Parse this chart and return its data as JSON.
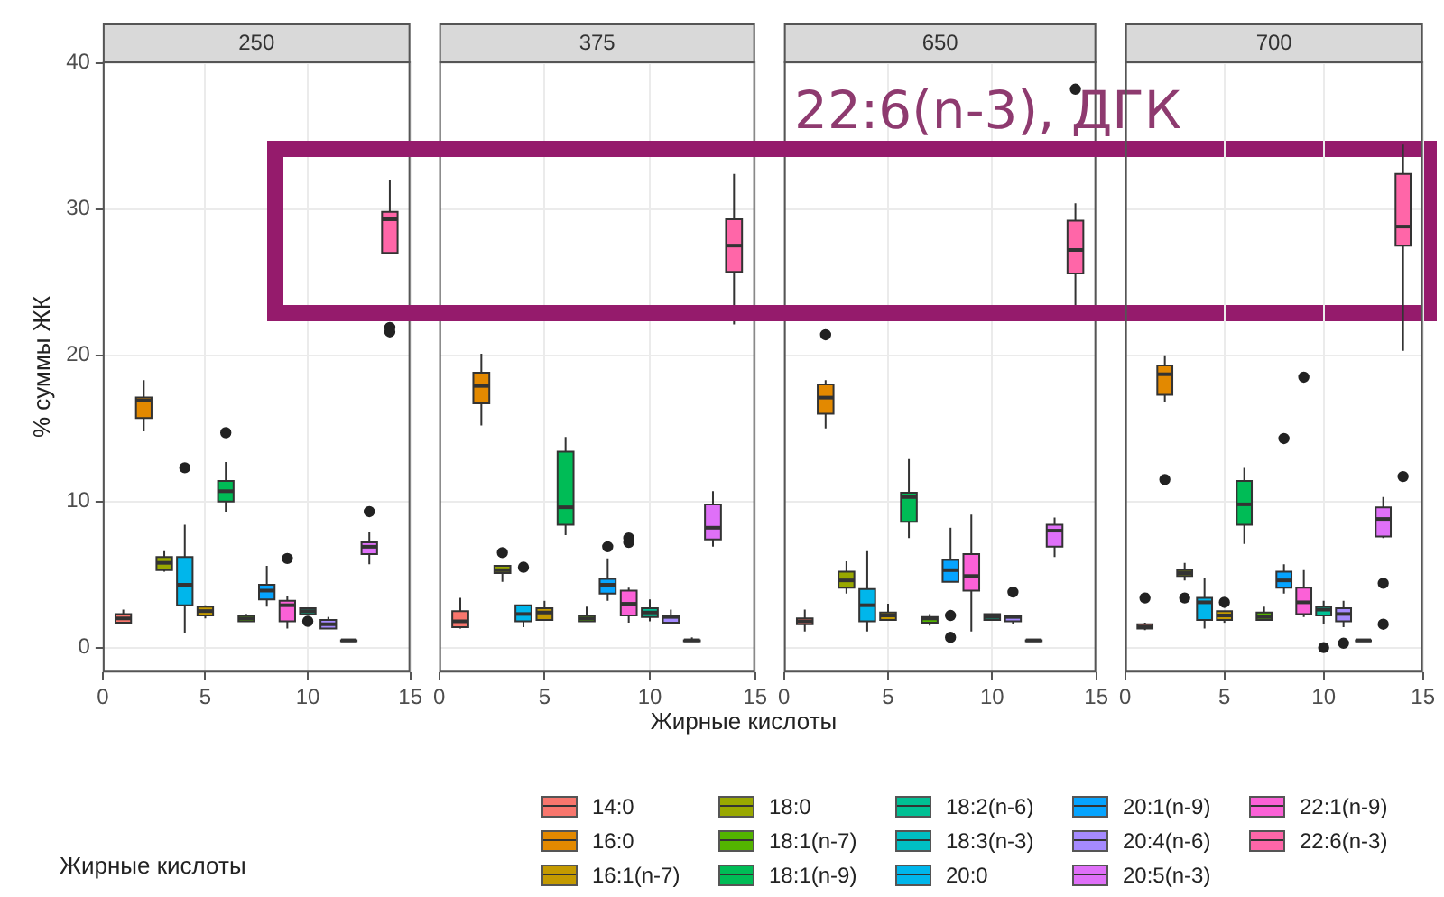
{
  "chart_data": [
    {
      "type": "box",
      "title": "250",
      "ylabel": "% суммы ЖК",
      "legend_title": "Жирные кислоты",
      "legend": "bottom",
      "grid": true,
      "xlim": [
        0,
        15
      ],
      "xticks": [
        0,
        5,
        10,
        15
      ],
      "ylim": [
        -1.7,
        40.1
      ],
      "yticks": [
        0,
        10,
        20,
        30,
        40
      ],
      "series": [
        {
          "name": "14:0",
          "color": "#f8766d",
          "x": [
            1
          ],
          "boxes": [
            {
              "low": 1.6,
              "q1": 1.7,
              "median": 2.0,
              "q3": 2.3,
              "high": 2.6
            }
          ]
        },
        {
          "name": "16:0",
          "color": "#e38900",
          "x": [
            2
          ],
          "boxes": [
            {
              "low": 14.8,
              "q1": 15.7,
              "median": 16.9,
              "q3": 17.1,
              "high": 18.3
            }
          ]
        },
        {
          "name": "16:1(n-7)",
          "color": "#c49a00",
          "x": [
            5
          ],
          "boxes": [
            {
              "low": 2.0,
              "q1": 2.2,
              "median": 2.5,
              "q3": 2.8,
              "high": 2.9
            }
          ]
        },
        {
          "name": "18:0",
          "color": "#99a800",
          "x": [
            3
          ],
          "boxes": [
            {
              "low": 5.2,
              "q1": 5.3,
              "median": 5.8,
              "q3": 6.2,
              "high": 6.6
            }
          ]
        },
        {
          "name": "18:1(n-7)",
          "color": "#53b400",
          "x": [
            7
          ],
          "boxes": [
            {
              "low": 1.8,
              "q1": 1.8,
              "median": 2.0,
              "q3": 2.2,
              "high": 2.3
            }
          ]
        },
        {
          "name": "18:1(n-9)",
          "color": "#00bc56",
          "x": [
            6
          ],
          "boxes": [
            {
              "low": 9.3,
              "q1": 10.0,
              "median": 10.7,
              "q3": 11.4,
              "high": 12.7,
              "outliers": [
                14.7
              ]
            }
          ]
        },
        {
          "name": "18:2(n-6)",
          "color": "#00c094",
          "x": [
            10
          ],
          "boxes": [
            {
              "low": 2.3,
              "q1": 2.3,
              "median": 2.5,
              "q3": 2.7,
              "high": 2.7,
              "outliers": [
                1.8
              ]
            }
          ]
        },
        {
          "name": "18:3(n-3)",
          "color": "#00bfc4",
          "x": [
            12
          ],
          "boxes": [
            {
              "low": 0.5,
              "q1": 0.5,
              "median": 0.5,
              "q3": 0.5,
              "high": 0.5
            }
          ]
        },
        {
          "name": "20:0",
          "color": "#00b6eb",
          "x": [
            4
          ],
          "boxes": [
            {
              "low": 1.0,
              "q1": 2.9,
              "median": 4.3,
              "q3": 6.2,
              "high": 8.4,
              "outliers": [
                12.3
              ]
            }
          ]
        },
        {
          "name": "20:1(n-9)",
          "color": "#06a4ff",
          "x": [
            8
          ],
          "boxes": [
            {
              "low": 2.8,
              "q1": 3.3,
              "median": 3.9,
              "q3": 4.3,
              "high": 5.6
            }
          ]
        },
        {
          "name": "20:4(n-6)",
          "color": "#a58aff",
          "x": [
            11
          ],
          "boxes": [
            {
              "low": 1.3,
              "q1": 1.3,
              "median": 1.6,
              "q3": 1.9,
              "high": 2.1
            }
          ]
        },
        {
          "name": "20:5(n-3)",
          "color": "#df70f8",
          "x": [
            13
          ],
          "boxes": [
            {
              "low": 5.7,
              "q1": 6.4,
              "median": 6.9,
              "q3": 7.2,
              "high": 7.9,
              "outliers": [
                9.3
              ]
            }
          ]
        },
        {
          "name": "22:1(n-9)",
          "color": "#fb61d7",
          "x": [
            9
          ],
          "boxes": [
            {
              "low": 1.3,
              "q1": 1.8,
              "median": 2.9,
              "q3": 3.2,
              "high": 3.5,
              "outliers": [
                6.1
              ]
            }
          ]
        },
        {
          "name": "22:6(n-3)",
          "color": "#ff66a8",
          "x": [
            14
          ],
          "boxes": [
            {
              "low": 27.0,
              "q1": 27.0,
              "median": 29.3,
              "q3": 29.8,
              "high": 32.0,
              "outliers": [
                21.9,
                21.6
              ]
            }
          ]
        }
      ]
    },
    {
      "type": "box",
      "title": "375",
      "xlabel": "Жирные кислоты",
      "tick_labels": "x",
      "grid": true,
      "xlim": [
        0,
        15
      ],
      "xticks": [
        0,
        5,
        10,
        15
      ],
      "ylim": [
        -1.7,
        40.1
      ],
      "yticks": [
        0,
        10,
        20,
        30,
        40
      ],
      "series": [
        {
          "color": "#f8766d",
          "x": [
            1
          ],
          "boxes": [
            {
              "low": 1.3,
              "q1": 1.4,
              "median": 1.8,
              "q3": 2.5,
              "high": 3.4
            }
          ]
        },
        {
          "color": "#e38900",
          "x": [
            2
          ],
          "boxes": [
            {
              "low": 15.2,
              "q1": 16.7,
              "median": 17.9,
              "q3": 18.8,
              "high": 20.1
            }
          ]
        },
        {
          "color": "#c49a00",
          "x": [
            5
          ],
          "boxes": [
            {
              "low": 1.9,
              "q1": 1.9,
              "median": 2.4,
              "q3": 2.7,
              "high": 3.2
            }
          ]
        },
        {
          "color": "#99a800",
          "x": [
            3
          ],
          "boxes": [
            {
              "low": 4.5,
              "q1": 5.1,
              "median": 5.3,
              "q3": 5.6,
              "high": 5.6,
              "outliers": [
                6.5
              ]
            }
          ]
        },
        {
          "color": "#53b400",
          "x": [
            7
          ],
          "boxes": [
            {
              "low": 1.8,
              "q1": 1.8,
              "median": 2.0,
              "q3": 2.2,
              "high": 2.8
            }
          ]
        },
        {
          "color": "#00bc56",
          "x": [
            6
          ],
          "boxes": [
            {
              "low": 7.7,
              "q1": 8.4,
              "median": 9.6,
              "q3": 13.4,
              "high": 14.4
            }
          ]
        },
        {
          "color": "#00c094",
          "x": [
            10
          ],
          "boxes": [
            {
              "low": 1.8,
              "q1": 2.1,
              "median": 2.4,
              "q3": 2.7,
              "high": 3.3
            }
          ]
        },
        {
          "color": "#00bfc4",
          "x": [
            12
          ],
          "boxes": [
            {
              "low": 0.5,
              "q1": 0.5,
              "median": 0.5,
              "q3": 0.5,
              "high": 0.7
            }
          ]
        },
        {
          "color": "#00b6eb",
          "x": [
            4
          ],
          "boxes": [
            {
              "low": 1.4,
              "q1": 1.8,
              "median": 2.3,
              "q3": 2.9,
              "high": 2.9,
              "outliers": [
                5.5
              ]
            }
          ]
        },
        {
          "color": "#06a4ff",
          "x": [
            8
          ],
          "boxes": [
            {
              "low": 3.2,
              "q1": 3.7,
              "median": 4.3,
              "q3": 4.7,
              "high": 6.1,
              "outliers": [
                6.9
              ]
            }
          ]
        },
        {
          "color": "#a58aff",
          "x": [
            11
          ],
          "boxes": [
            {
              "low": 1.7,
              "q1": 1.7,
              "median": 2.1,
              "q3": 2.2,
              "high": 2.6
            }
          ]
        },
        {
          "color": "#df70f8",
          "x": [
            13
          ],
          "boxes": [
            {
              "low": 6.9,
              "q1": 7.4,
              "median": 8.2,
              "q3": 9.8,
              "high": 10.7
            }
          ]
        },
        {
          "color": "#fb61d7",
          "x": [
            9
          ],
          "boxes": [
            {
              "low": 1.7,
              "q1": 2.2,
              "median": 3.0,
              "q3": 3.9,
              "high": 4.1,
              "outliers": [
                7.5,
                7.2
              ]
            }
          ]
        },
        {
          "color": "#ff66a8",
          "x": [
            14
          ],
          "boxes": [
            {
              "low": 22.1,
              "q1": 25.7,
              "median": 27.5,
              "q3": 29.3,
              "high": 32.4
            }
          ]
        }
      ]
    },
    {
      "type": "box",
      "title": "650",
      "annotations": [
        "22:6(n-3), ДГК"
      ],
      "tick_labels": "x",
      "grid": true,
      "xlim": [
        0,
        15
      ],
      "xticks": [
        0,
        5,
        10,
        15
      ],
      "ylim": [
        -1.7,
        40.1
      ],
      "yticks": [
        0,
        10,
        20,
        30,
        40
      ],
      "series": [
        {
          "color": "#f8766d",
          "x": [
            1
          ],
          "boxes": [
            {
              "low": 1.1,
              "q1": 1.6,
              "median": 1.8,
              "q3": 2.0,
              "high": 2.6
            }
          ]
        },
        {
          "color": "#e38900",
          "x": [
            2
          ],
          "boxes": [
            {
              "low": 15.0,
              "q1": 16.0,
              "median": 17.1,
              "q3": 18.0,
              "high": 18.3,
              "outliers": [
                21.4
              ]
            }
          ]
        },
        {
          "color": "#c49a00",
          "x": [
            5
          ],
          "boxes": [
            {
              "low": 1.9,
              "q1": 1.9,
              "median": 2.2,
              "q3": 2.4,
              "high": 3.0
            }
          ]
        },
        {
          "color": "#99a800",
          "x": [
            3
          ],
          "boxes": [
            {
              "low": 3.7,
              "q1": 4.1,
              "median": 4.6,
              "q3": 5.2,
              "high": 5.9
            }
          ]
        },
        {
          "color": "#53b400",
          "x": [
            7
          ],
          "boxes": [
            {
              "low": 1.5,
              "q1": 1.7,
              "median": 2.0,
              "q3": 2.1,
              "high": 2.3
            }
          ]
        },
        {
          "color": "#00bc56",
          "x": [
            6
          ],
          "boxes": [
            {
              "low": 7.5,
              "q1": 8.6,
              "median": 10.3,
              "q3": 10.6,
              "high": 12.9
            }
          ]
        },
        {
          "color": "#00c094",
          "x": [
            10
          ],
          "boxes": [
            {
              "low": 1.9,
              "q1": 1.9,
              "median": 2.1,
              "q3": 2.3,
              "high": 2.3
            }
          ]
        },
        {
          "color": "#00bfc4",
          "x": [
            12
          ],
          "boxes": [
            {
              "low": 0.5,
              "q1": 0.5,
              "median": 0.5,
              "q3": 0.5,
              "high": 0.5
            }
          ]
        },
        {
          "color": "#00b6eb",
          "x": [
            4
          ],
          "boxes": [
            {
              "low": 1.1,
              "q1": 1.8,
              "median": 2.9,
              "q3": 4.0,
              "high": 6.6
            }
          ]
        },
        {
          "color": "#06a4ff",
          "x": [
            8
          ],
          "boxes": [
            {
              "low": 4.5,
              "q1": 4.5,
              "median": 5.3,
              "q3": 6.0,
              "high": 8.2,
              "outliers": [
                2.2,
                0.7
              ]
            }
          ]
        },
        {
          "color": "#a58aff",
          "x": [
            11
          ],
          "boxes": [
            {
              "low": 1.6,
              "q1": 1.8,
              "median": 2.1,
              "q3": 2.2,
              "high": 2.2,
              "outliers": [
                3.8
              ]
            }
          ]
        },
        {
          "color": "#df70f8",
          "x": [
            13
          ],
          "boxes": [
            {
              "low": 6.2,
              "q1": 6.9,
              "median": 8.0,
              "q3": 8.4,
              "high": 8.9
            }
          ]
        },
        {
          "color": "#fb61d7",
          "x": [
            9
          ],
          "boxes": [
            {
              "low": 1.1,
              "q1": 3.9,
              "median": 4.9,
              "q3": 6.4,
              "high": 9.1
            }
          ]
        },
        {
          "color": "#ff66a8",
          "x": [
            14
          ],
          "boxes": [
            {
              "low": 23.2,
              "q1": 25.6,
              "median": 27.2,
              "q3": 29.2,
              "high": 30.4,
              "outliers": [
                38.2
              ]
            }
          ]
        }
      ]
    },
    {
      "type": "box",
      "title": "700",
      "tick_labels": "x",
      "grid": true,
      "xlim": [
        0,
        15
      ],
      "xticks": [
        0,
        5,
        10,
        15
      ],
      "ylim": [
        -1.7,
        40.1
      ],
      "yticks": [
        0,
        10,
        20,
        30,
        40
      ],
      "series": [
        {
          "color": "#f8766d",
          "x": [
            1
          ],
          "boxes": [
            {
              "low": 1.2,
              "q1": 1.3,
              "median": 1.4,
              "q3": 1.6,
              "high": 1.7,
              "outliers": [
                3.4
              ]
            }
          ]
        },
        {
          "color": "#e38900",
          "x": [
            2
          ],
          "boxes": [
            {
              "low": 16.8,
              "q1": 17.3,
              "median": 18.7,
              "q3": 19.3,
              "high": 20.0,
              "outliers": [
                11.5
              ]
            }
          ]
        },
        {
          "color": "#c49a00",
          "x": [
            5
          ],
          "boxes": [
            {
              "low": 1.7,
              "q1": 1.9,
              "median": 2.2,
              "q3": 2.5,
              "high": 2.5,
              "outliers": [
                3.1
              ]
            }
          ]
        },
        {
          "color": "#99a800",
          "x": [
            3
          ],
          "boxes": [
            {
              "low": 4.6,
              "q1": 4.9,
              "median": 5.1,
              "q3": 5.3,
              "high": 5.8,
              "outliers": [
                3.4
              ]
            }
          ]
        },
        {
          "color": "#53b400",
          "x": [
            7
          ],
          "boxes": [
            {
              "low": 1.9,
              "q1": 1.9,
              "median": 2.1,
              "q3": 2.4,
              "high": 2.8
            }
          ]
        },
        {
          "color": "#00bc56",
          "x": [
            6
          ],
          "boxes": [
            {
              "low": 7.1,
              "q1": 8.4,
              "median": 9.8,
              "q3": 11.4,
              "high": 12.3
            }
          ]
        },
        {
          "color": "#00c094",
          "x": [
            10
          ],
          "boxes": [
            {
              "low": 1.6,
              "q1": 2.2,
              "median": 2.6,
              "q3": 2.8,
              "high": 3.2,
              "outliers": [
                0.0
              ]
            }
          ]
        },
        {
          "color": "#00bfc4",
          "x": [
            12
          ],
          "boxes": [
            {
              "low": 0.5,
              "q1": 0.5,
              "median": 0.5,
              "q3": 0.5,
              "high": 0.5
            }
          ]
        },
        {
          "color": "#00b6eb",
          "x": [
            4
          ],
          "boxes": [
            {
              "low": 1.3,
              "q1": 1.9,
              "median": 3.1,
              "q3": 3.4,
              "high": 4.8
            }
          ]
        },
        {
          "color": "#06a4ff",
          "x": [
            8
          ],
          "boxes": [
            {
              "low": 3.7,
              "q1": 4.1,
              "median": 4.6,
              "q3": 5.2,
              "high": 5.7,
              "outliers": [
                14.3
              ]
            }
          ]
        },
        {
          "color": "#a58aff",
          "x": [
            11
          ],
          "boxes": [
            {
              "low": 1.4,
              "q1": 1.8,
              "median": 2.3,
              "q3": 2.7,
              "high": 3.2,
              "outliers": [
                0.3
              ]
            }
          ]
        },
        {
          "color": "#df70f8",
          "x": [
            13
          ],
          "boxes": [
            {
              "low": 7.5,
              "q1": 7.6,
              "median": 8.8,
              "q3": 9.6,
              "high": 10.3,
              "outliers": [
                4.4,
                1.6
              ]
            }
          ]
        },
        {
          "color": "#fb61d7",
          "x": [
            9
          ],
          "boxes": [
            {
              "low": 2.1,
              "q1": 2.3,
              "median": 3.1,
              "q3": 4.1,
              "high": 5.3,
              "outliers": [
                18.5
              ]
            }
          ]
        },
        {
          "color": "#ff66a8",
          "x": [
            14
          ],
          "boxes": [
            {
              "low": 20.3,
              "q1": 27.5,
              "median": 28.8,
              "q3": 32.4,
              "high": 34.4,
              "outliers": [
                11.7
              ]
            }
          ]
        }
      ]
    }
  ]
}
